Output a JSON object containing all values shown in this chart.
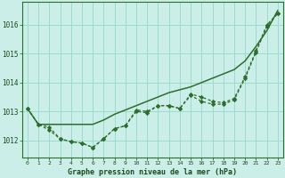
{
  "title": "Graphe pression niveau de la mer (hPa)",
  "background_color": "#cceee8",
  "grid_color": "#99ddcc",
  "line_color": "#2d6e2d",
  "xlim": [
    -0.5,
    23.5
  ],
  "ylim": [
    1011.4,
    1016.8
  ],
  "yticks": [
    1012,
    1013,
    1014,
    1015,
    1016
  ],
  "xtick_labels": [
    "0",
    "1",
    "2",
    "3",
    "4",
    "5",
    "6",
    "7",
    "8",
    "9",
    "10",
    "11",
    "12",
    "13",
    "14",
    "15",
    "16",
    "17",
    "18",
    "19",
    "20",
    "21",
    "22",
    "23"
  ],
  "y_straight": [
    1013.1,
    1012.55,
    1012.55,
    1012.55,
    1012.55,
    1012.55,
    1012.55,
    1012.7,
    1012.9,
    1013.05,
    1013.2,
    1013.35,
    1013.5,
    1013.65,
    1013.75,
    1013.85,
    1014.0,
    1014.15,
    1014.3,
    1014.45,
    1014.75,
    1015.25,
    1015.8,
    1016.5
  ],
  "y_line2": [
    1013.1,
    1012.55,
    1012.45,
    1012.05,
    1011.95,
    1011.9,
    1011.75,
    1012.05,
    1012.4,
    1012.5,
    1013.0,
    1012.95,
    1013.2,
    1013.2,
    1013.1,
    1013.55,
    1013.35,
    1013.25,
    1013.25,
    1013.4,
    1014.15,
    1015.05,
    1015.95,
    1016.4
  ],
  "y_line3": [
    1013.1,
    1012.55,
    1012.35,
    1012.05,
    1011.95,
    1011.9,
    1011.75,
    1012.05,
    1012.4,
    1012.5,
    1013.05,
    1013.0,
    1013.2,
    1013.2,
    1013.1,
    1013.6,
    1013.5,
    1013.35,
    1013.3,
    1013.45,
    1014.2,
    1015.1,
    1016.0,
    1016.4
  ],
  "x": [
    0,
    1,
    2,
    3,
    4,
    5,
    6,
    7,
    8,
    9,
    10,
    11,
    12,
    13,
    14,
    15,
    16,
    17,
    18,
    19,
    20,
    21,
    22,
    23
  ]
}
